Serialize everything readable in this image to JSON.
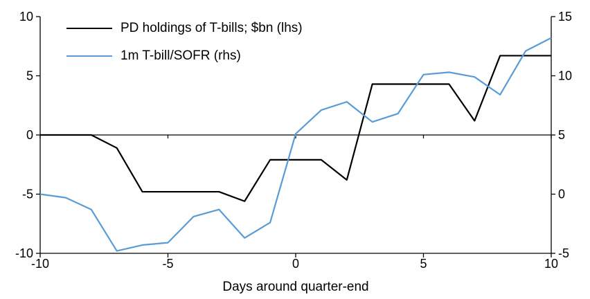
{
  "chart_data": {
    "type": "line",
    "title": "",
    "xlabel": "Days around quarter-end",
    "grid": false,
    "legend_position": "top-left",
    "x": [
      -10,
      -9,
      -8,
      -7,
      -6,
      -5,
      -4,
      -3,
      -2,
      -1,
      0,
      1,
      2,
      3,
      4,
      5,
      6,
      7,
      8,
      9,
      10
    ],
    "axes": {
      "x": {
        "min": -10,
        "max": 10,
        "ticks": [
          -10,
          -5,
          0,
          5,
          10
        ]
      },
      "left": {
        "min": -10,
        "max": 10,
        "ticks": [
          10,
          5,
          0,
          -5,
          -10
        ]
      },
      "right": {
        "min": -5,
        "max": 15,
        "ticks": [
          15,
          10,
          5,
          0,
          -5
        ]
      }
    },
    "series": [
      {
        "id": "pd-holdings",
        "name": "PD holdings of T-bills; $bn (lhs)",
        "axis": "left",
        "color": "#000000",
        "values": [
          0,
          0,
          0,
          -1.1,
          -4.8,
          -4.8,
          -4.8,
          -4.8,
          -5.6,
          -2.1,
          -2.1,
          -2.1,
          -3.8,
          4.3,
          4.3,
          4.3,
          4.3,
          1.2,
          6.7,
          6.7,
          6.7
        ]
      },
      {
        "id": "tbill-sofr",
        "name": "1m T-bill/SOFR (rhs)",
        "axis": "right",
        "color": "#5B9BD5",
        "values": [
          0,
          -0.3,
          -1.3,
          -4.8,
          -4.3,
          -4.1,
          -1.9,
          -1.3,
          -3.7,
          -2.4,
          5.1,
          7.1,
          7.8,
          6.1,
          6.8,
          10.1,
          10.3,
          9.9,
          8.4,
          12.1,
          13.2
        ]
      }
    ]
  }
}
